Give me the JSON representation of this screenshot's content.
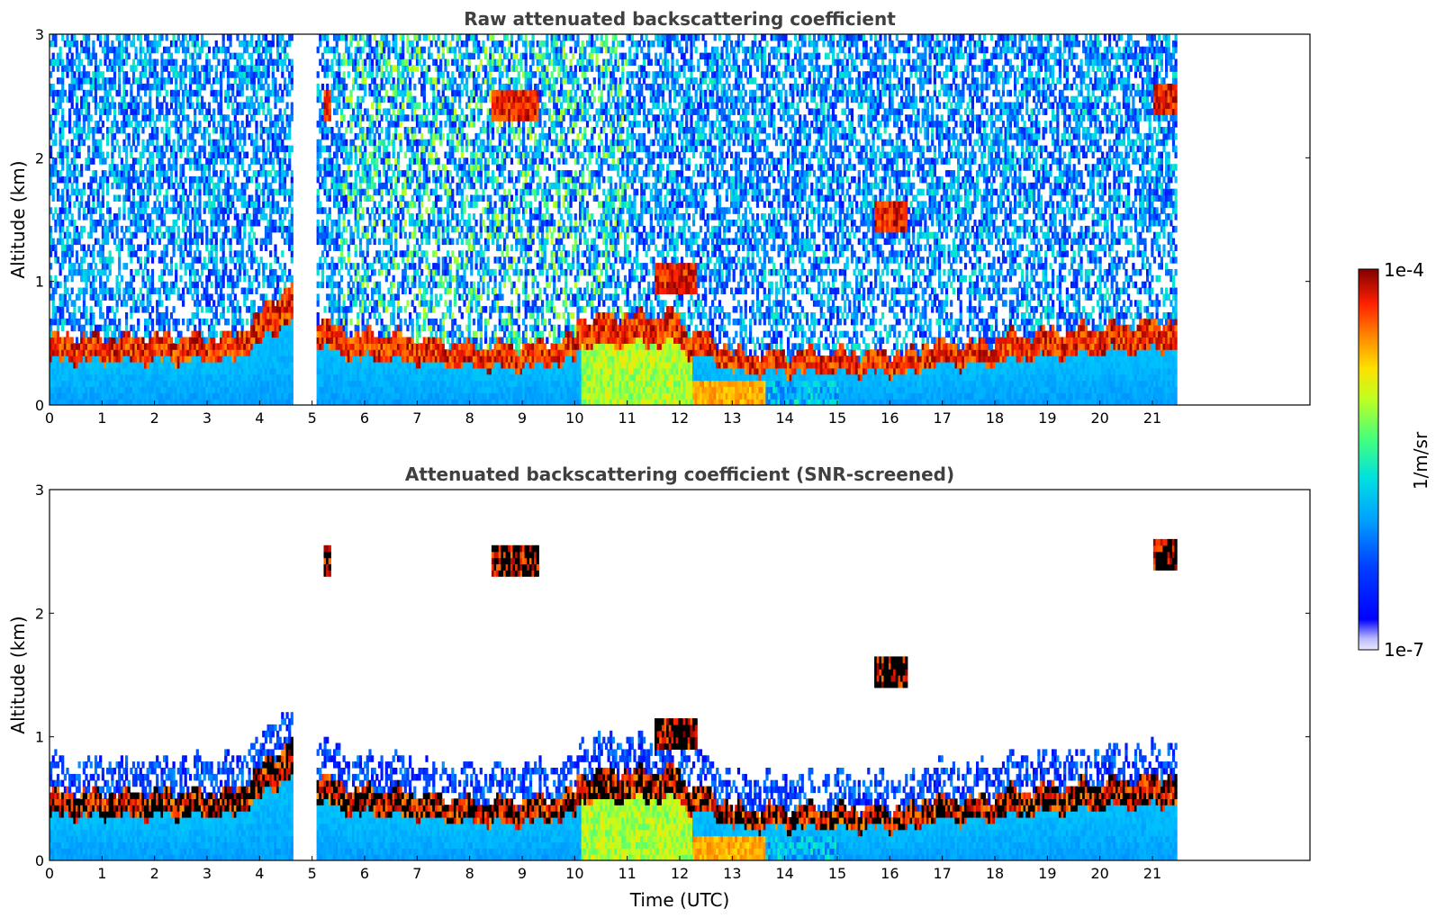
{
  "chart_data": [
    {
      "type": "heatmap",
      "title": "Raw attenuated backscattering coefficient",
      "xlabel": "",
      "ylabel": "Altitude (km)",
      "xlim": [
        0,
        24
      ],
      "ylim": [
        0,
        3
      ],
      "x_ticks": [
        "0",
        "1",
        "2",
        "3",
        "4",
        "5",
        "6",
        "7",
        "8",
        "9",
        "10",
        "11",
        "12",
        "13",
        "14",
        "15",
        "16",
        "17",
        "18",
        "19",
        "20",
        "21"
      ],
      "y_ticks": [
        "0",
        "1",
        "2",
        "3"
      ],
      "data_gap": [
        4.62,
        5.07
      ],
      "data_end": 21.45,
      "features": [
        {
          "kind": "boundary-layer",
          "x": [
            0,
            4.6
          ],
          "top_km": 0.45
        },
        {
          "kind": "boundary-layer",
          "x": [
            5.1,
            10.1
          ],
          "top_km": 0.45
        },
        {
          "kind": "boundary-layer",
          "x": [
            10.1,
            15.0
          ],
          "top_km": 0.6
        },
        {
          "kind": "boundary-layer",
          "x": [
            15.0,
            21.45
          ],
          "top_km": 0.5
        },
        {
          "kind": "cloud",
          "x": [
            8.4,
            9.3
          ],
          "y_km": 2.4
        },
        {
          "kind": "cloud",
          "x": [
            5.2,
            5.35
          ],
          "y_km": 2.38
        },
        {
          "kind": "cloud",
          "x": [
            15.7,
            16.3
          ],
          "y_km": 1.5
        },
        {
          "kind": "cloud",
          "x": [
            21.0,
            21.45
          ],
          "y_km": 2.45
        },
        {
          "kind": "aerosol-plume",
          "x": [
            11.5,
            12.3
          ],
          "y_km": 1.0
        }
      ]
    },
    {
      "type": "heatmap",
      "title": "Attenuated backscattering coefficient (SNR-screened)",
      "xlabel": "Time (UTC)",
      "ylabel": "Altitude (km)",
      "xlim": [
        0,
        24
      ],
      "ylim": [
        0,
        3
      ],
      "x_ticks": [
        "0",
        "1",
        "2",
        "3",
        "4",
        "5",
        "6",
        "7",
        "8",
        "9",
        "10",
        "11",
        "12",
        "13",
        "14",
        "15",
        "16",
        "17",
        "18",
        "19",
        "20",
        "21"
      ],
      "y_ticks": [
        "0",
        "1",
        "2",
        "3"
      ],
      "data_gap": [
        4.62,
        5.07
      ],
      "data_end": 21.45
    }
  ],
  "colorbar": {
    "label": "1/m/sr",
    "max_label": "1e-4",
    "min_label": "1e-7",
    "scale": "log",
    "colormap": "jet"
  },
  "colors": {
    "title": "#404040",
    "axes": "#000000",
    "missing": "#ffffff"
  }
}
